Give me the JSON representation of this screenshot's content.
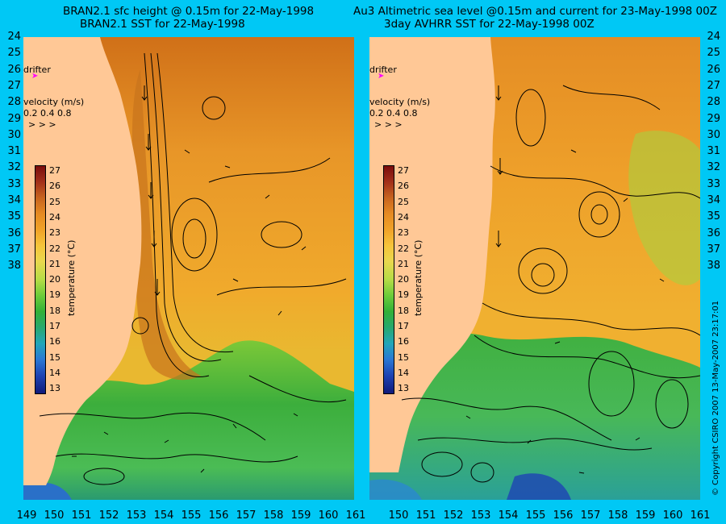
{
  "left_panel": {
    "title_line1": "BRAN2.1 sfc height @ 0.15m for 22-May-1998",
    "title_line2": "BRAN2.1 SST for 22-May-1998"
  },
  "right_panel": {
    "title_line1": "Au3 Altimetric sea level  @0.15m and current for 23-May-1998 00Z",
    "title_line2": "3day AVHRR SST for 22-May-1998 00Z"
  },
  "y_ticks": [
    "24",
    "25",
    "26",
    "27",
    "28",
    "29",
    "30",
    "31",
    "32",
    "33",
    "34",
    "35",
    "36",
    "37",
    "38"
  ],
  "x_ticks_left": [
    "149",
    "150",
    "151",
    "152",
    "153",
    "154",
    "155",
    "156",
    "157",
    "158",
    "159",
    "160",
    "161"
  ],
  "x_ticks_right": [
    "150",
    "151",
    "152",
    "153",
    "154",
    "155",
    "156",
    "157",
    "158",
    "159",
    "160",
    "161"
  ],
  "drifter_label": "drifter",
  "velocity_label": "velocity (m/s)",
  "velocity_scale": "0.2 0.4 0.8",
  "velocity_arrows": "> > >",
  "colorbar": {
    "ticks": [
      "27",
      "26",
      "25",
      "24",
      "23",
      "22",
      "21",
      "20",
      "19",
      "18",
      "17",
      "16",
      "15",
      "14",
      "13"
    ],
    "label": "temperature (°C)"
  },
  "copyright": "© Copyright CSIRO 2007    13-May-2007 23:17:01",
  "colors": {
    "background": "#00c8f5",
    "land": "#ffc896",
    "drifter": "#ff00ff",
    "warm": "#e8a020",
    "cool": "#33b038"
  }
}
